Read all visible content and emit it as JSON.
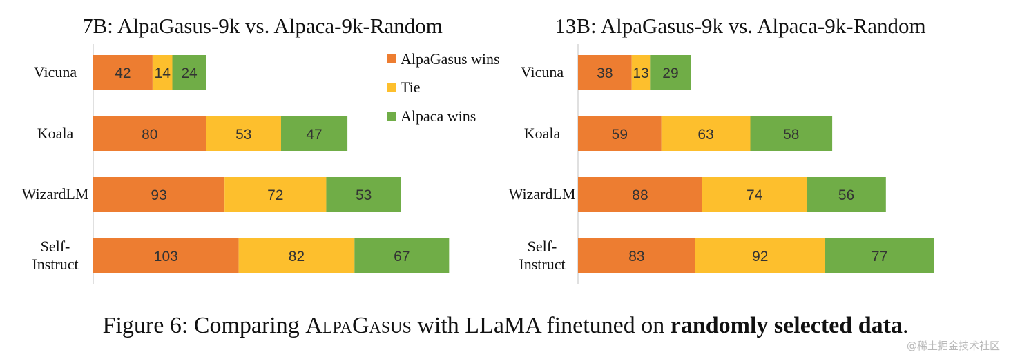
{
  "chart_data": [
    {
      "type": "bar",
      "orientation": "horizontal",
      "stacked": true,
      "title": "7B: AlpaGasus-9k vs. Alpaca-9k-Random",
      "categories": [
        "Vicuna",
        "Koala",
        "WizardLM",
        "Self-Instruct"
      ],
      "series": [
        {
          "name": "AlpaGasus wins",
          "values": [
            42,
            80,
            93,
            103
          ]
        },
        {
          "name": "Tie",
          "values": [
            14,
            53,
            72,
            82
          ]
        },
        {
          "name": "Alpaca wins",
          "values": [
            24,
            47,
            53,
            67
          ]
        }
      ],
      "xlabel": "",
      "ylabel": "",
      "xlim": [
        0,
        252
      ],
      "grid": false,
      "legend": "top-right"
    },
    {
      "type": "bar",
      "orientation": "horizontal",
      "stacked": true,
      "title": "13B: AlpaGasus-9k vs. Alpaca-9k-Random",
      "categories": [
        "Vicuna",
        "Koala",
        "WizardLM",
        "Self-Instruct"
      ],
      "series": [
        {
          "name": "AlpaGasus wins",
          "values": [
            38,
            59,
            88,
            83
          ]
        },
        {
          "name": "Tie",
          "values": [
            13,
            63,
            74,
            92
          ]
        },
        {
          "name": "Alpaca wins",
          "values": [
            29,
            58,
            56,
            77
          ]
        }
      ],
      "xlabel": "",
      "ylabel": "",
      "xlim": [
        0,
        252
      ],
      "grid": false,
      "legend": "none"
    }
  ],
  "colors": {
    "AlpaGasus wins": "#ed7d31",
    "Tie": "#fdbf2d",
    "Alpaca wins": "#70ad47"
  },
  "caption": {
    "prefix": "Figure 6: Comparing ",
    "name": "AlpaGasus",
    "middle": " with LLaMA finetuned on ",
    "bold": "randomly selected data",
    "suffix": "."
  },
  "watermark": "@稀土掘金技术社区"
}
